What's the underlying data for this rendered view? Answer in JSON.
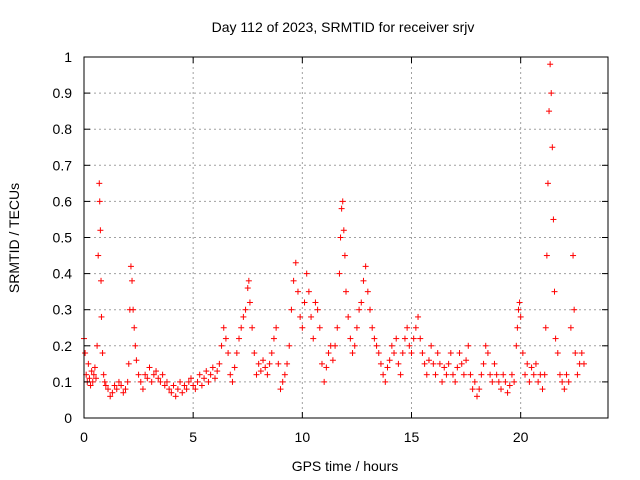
{
  "chart_data": {
    "type": "scatter",
    "title": "Day 112 of 2023, SRMTID for receiver srjv",
    "xlabel": "GPS time / hours",
    "ylabel": "SRMTID / TECUs",
    "xlim": [
      0,
      24
    ],
    "ylim": [
      0,
      1
    ],
    "xticks": [
      0,
      5,
      10,
      15,
      20
    ],
    "xtick_labels": [
      "0",
      "5",
      "10",
      "15",
      "20"
    ],
    "yticks": [
      0,
      0.1,
      0.2,
      0.3,
      0.4,
      0.5,
      0.6,
      0.7,
      0.8,
      0.9,
      1
    ],
    "ytick_labels": [
      "0",
      "0.1",
      "0.2",
      "0.3",
      "0.4",
      "0.5",
      "0.6",
      "0.7",
      "0.8",
      "0.9",
      "1"
    ],
    "grid": true,
    "marker": "+",
    "color": "#ff0000",
    "series": [
      {
        "name": "srjv",
        "points": [
          [
            0.0,
            0.22
          ],
          [
            0.05,
            0.18
          ],
          [
            0.1,
            0.12
          ],
          [
            0.15,
            0.1
          ],
          [
            0.2,
            0.15
          ],
          [
            0.25,
            0.11
          ],
          [
            0.3,
            0.09
          ],
          [
            0.35,
            0.13
          ],
          [
            0.4,
            0.1
          ],
          [
            0.45,
            0.12
          ],
          [
            0.5,
            0.14
          ],
          [
            0.55,
            0.11
          ],
          [
            0.6,
            0.2
          ],
          [
            0.65,
            0.45
          ],
          [
            0.7,
            0.65
          ],
          [
            0.72,
            0.6
          ],
          [
            0.75,
            0.52
          ],
          [
            0.78,
            0.38
          ],
          [
            0.8,
            0.28
          ],
          [
            0.85,
            0.18
          ],
          [
            0.9,
            0.12
          ],
          [
            0.95,
            0.1
          ],
          [
            1.0,
            0.09
          ],
          [
            1.1,
            0.08
          ],
          [
            1.2,
            0.06
          ],
          [
            1.3,
            0.07
          ],
          [
            1.4,
            0.09
          ],
          [
            1.5,
            0.08
          ],
          [
            1.6,
            0.1
          ],
          [
            1.7,
            0.09
          ],
          [
            1.8,
            0.07
          ],
          [
            1.9,
            0.08
          ],
          [
            2.0,
            0.1
          ],
          [
            2.05,
            0.15
          ],
          [
            2.1,
            0.3
          ],
          [
            2.15,
            0.42
          ],
          [
            2.2,
            0.38
          ],
          [
            2.25,
            0.3
          ],
          [
            2.3,
            0.25
          ],
          [
            2.35,
            0.2
          ],
          [
            2.4,
            0.16
          ],
          [
            2.5,
            0.12
          ],
          [
            2.6,
            0.1
          ],
          [
            2.7,
            0.08
          ],
          [
            2.8,
            0.12
          ],
          [
            2.9,
            0.11
          ],
          [
            3.0,
            0.14
          ],
          [
            3.1,
            0.1
          ],
          [
            3.2,
            0.12
          ],
          [
            3.3,
            0.13
          ],
          [
            3.4,
            0.11
          ],
          [
            3.5,
            0.1
          ],
          [
            3.6,
            0.12
          ],
          [
            3.7,
            0.09
          ],
          [
            3.8,
            0.1
          ],
          [
            3.9,
            0.08
          ],
          [
            4.0,
            0.07
          ],
          [
            4.1,
            0.09
          ],
          [
            4.2,
            0.06
          ],
          [
            4.3,
            0.08
          ],
          [
            4.4,
            0.1
          ],
          [
            4.5,
            0.07
          ],
          [
            4.6,
            0.09
          ],
          [
            4.7,
            0.08
          ],
          [
            4.8,
            0.1
          ],
          [
            4.9,
            0.11
          ],
          [
            5.0,
            0.09
          ],
          [
            5.1,
            0.08
          ],
          [
            5.2,
            0.1
          ],
          [
            5.3,
            0.12
          ],
          [
            5.4,
            0.09
          ],
          [
            5.5,
            0.11
          ],
          [
            5.6,
            0.13
          ],
          [
            5.7,
            0.1
          ],
          [
            5.8,
            0.12
          ],
          [
            5.9,
            0.14
          ],
          [
            6.0,
            0.11
          ],
          [
            6.1,
            0.13
          ],
          [
            6.2,
            0.15
          ],
          [
            6.3,
            0.2
          ],
          [
            6.4,
            0.25
          ],
          [
            6.5,
            0.22
          ],
          [
            6.6,
            0.18
          ],
          [
            6.7,
            0.12
          ],
          [
            6.8,
            0.1
          ],
          [
            6.9,
            0.14
          ],
          [
            7.0,
            0.18
          ],
          [
            7.1,
            0.22
          ],
          [
            7.2,
            0.25
          ],
          [
            7.3,
            0.28
          ],
          [
            7.4,
            0.3
          ],
          [
            7.5,
            0.36
          ],
          [
            7.55,
            0.38
          ],
          [
            7.6,
            0.32
          ],
          [
            7.7,
            0.25
          ],
          [
            7.8,
            0.18
          ],
          [
            7.9,
            0.12
          ],
          [
            8.0,
            0.15
          ],
          [
            8.1,
            0.13
          ],
          [
            8.2,
            0.16
          ],
          [
            8.3,
            0.14
          ],
          [
            8.4,
            0.12
          ],
          [
            8.5,
            0.15
          ],
          [
            8.6,
            0.18
          ],
          [
            8.7,
            0.22
          ],
          [
            8.8,
            0.25
          ],
          [
            8.9,
            0.15
          ],
          [
            9.0,
            0.08
          ],
          [
            9.1,
            0.1
          ],
          [
            9.2,
            0.12
          ],
          [
            9.3,
            0.15
          ],
          [
            9.4,
            0.2
          ],
          [
            9.5,
            0.3
          ],
          [
            9.6,
            0.38
          ],
          [
            9.7,
            0.43
          ],
          [
            9.8,
            0.35
          ],
          [
            9.9,
            0.28
          ],
          [
            10.0,
            0.25
          ],
          [
            10.1,
            0.32
          ],
          [
            10.2,
            0.4
          ],
          [
            10.3,
            0.35
          ],
          [
            10.4,
            0.28
          ],
          [
            10.5,
            0.22
          ],
          [
            10.6,
            0.32
          ],
          [
            10.7,
            0.3
          ],
          [
            10.8,
            0.25
          ],
          [
            10.9,
            0.15
          ],
          [
            11.0,
            0.1
          ],
          [
            11.1,
            0.14
          ],
          [
            11.2,
            0.18
          ],
          [
            11.3,
            0.2
          ],
          [
            11.4,
            0.16
          ],
          [
            11.5,
            0.2
          ],
          [
            11.6,
            0.25
          ],
          [
            11.7,
            0.4
          ],
          [
            11.75,
            0.5
          ],
          [
            11.8,
            0.58
          ],
          [
            11.85,
            0.6
          ],
          [
            11.9,
            0.52
          ],
          [
            11.95,
            0.45
          ],
          [
            12.0,
            0.35
          ],
          [
            12.1,
            0.28
          ],
          [
            12.2,
            0.22
          ],
          [
            12.3,
            0.18
          ],
          [
            12.4,
            0.2
          ],
          [
            12.5,
            0.25
          ],
          [
            12.6,
            0.3
          ],
          [
            12.7,
            0.32
          ],
          [
            12.8,
            0.38
          ],
          [
            12.9,
            0.42
          ],
          [
            13.0,
            0.35
          ],
          [
            13.1,
            0.3
          ],
          [
            13.2,
            0.25
          ],
          [
            13.3,
            0.22
          ],
          [
            13.4,
            0.2
          ],
          [
            13.5,
            0.18
          ],
          [
            13.6,
            0.15
          ],
          [
            13.7,
            0.12
          ],
          [
            13.8,
            0.1
          ],
          [
            13.9,
            0.14
          ],
          [
            14.0,
            0.16
          ],
          [
            14.1,
            0.2
          ],
          [
            14.2,
            0.18
          ],
          [
            14.3,
            0.22
          ],
          [
            14.4,
            0.15
          ],
          [
            14.5,
            0.12
          ],
          [
            14.6,
            0.18
          ],
          [
            14.7,
            0.22
          ],
          [
            14.8,
            0.25
          ],
          [
            14.9,
            0.2
          ],
          [
            15.0,
            0.18
          ],
          [
            15.1,
            0.22
          ],
          [
            15.2,
            0.25
          ],
          [
            15.3,
            0.28
          ],
          [
            15.4,
            0.22
          ],
          [
            15.5,
            0.18
          ],
          [
            15.6,
            0.15
          ],
          [
            15.7,
            0.12
          ],
          [
            15.8,
            0.16
          ],
          [
            15.9,
            0.2
          ],
          [
            16.0,
            0.15
          ],
          [
            16.1,
            0.12
          ],
          [
            16.2,
            0.18
          ],
          [
            16.3,
            0.15
          ],
          [
            16.4,
            0.1
          ],
          [
            16.5,
            0.14
          ],
          [
            16.6,
            0.12
          ],
          [
            16.7,
            0.15
          ],
          [
            16.8,
            0.18
          ],
          [
            16.9,
            0.12
          ],
          [
            17.0,
            0.1
          ],
          [
            17.1,
            0.14
          ],
          [
            17.2,
            0.18
          ],
          [
            17.3,
            0.15
          ],
          [
            17.4,
            0.12
          ],
          [
            17.5,
            0.16
          ],
          [
            17.6,
            0.2
          ],
          [
            17.7,
            0.12
          ],
          [
            17.8,
            0.08
          ],
          [
            17.9,
            0.1
          ],
          [
            18.0,
            0.06
          ],
          [
            18.1,
            0.08
          ],
          [
            18.2,
            0.12
          ],
          [
            18.3,
            0.15
          ],
          [
            18.4,
            0.2
          ],
          [
            18.5,
            0.18
          ],
          [
            18.6,
            0.12
          ],
          [
            18.7,
            0.1
          ],
          [
            18.8,
            0.15
          ],
          [
            18.9,
            0.12
          ],
          [
            19.0,
            0.1
          ],
          [
            19.1,
            0.08
          ],
          [
            19.2,
            0.12
          ],
          [
            19.3,
            0.1
          ],
          [
            19.4,
            0.07
          ],
          [
            19.5,
            0.09
          ],
          [
            19.6,
            0.12
          ],
          [
            19.7,
            0.1
          ],
          [
            19.8,
            0.2
          ],
          [
            19.85,
            0.25
          ],
          [
            19.9,
            0.3
          ],
          [
            19.95,
            0.32
          ],
          [
            20.0,
            0.28
          ],
          [
            20.1,
            0.18
          ],
          [
            20.2,
            0.12
          ],
          [
            20.3,
            0.15
          ],
          [
            20.4,
            0.1
          ],
          [
            20.5,
            0.14
          ],
          [
            20.6,
            0.12
          ],
          [
            20.7,
            0.15
          ],
          [
            20.8,
            0.1
          ],
          [
            20.9,
            0.12
          ],
          [
            21.0,
            0.08
          ],
          [
            21.1,
            0.12
          ],
          [
            21.15,
            0.25
          ],
          [
            21.2,
            0.45
          ],
          [
            21.25,
            0.65
          ],
          [
            21.3,
            0.85
          ],
          [
            21.35,
            0.98
          ],
          [
            21.4,
            0.9
          ],
          [
            21.45,
            0.75
          ],
          [
            21.5,
            0.55
          ],
          [
            21.55,
            0.35
          ],
          [
            21.6,
            0.22
          ],
          [
            21.7,
            0.18
          ],
          [
            21.8,
            0.12
          ],
          [
            21.9,
            0.1
          ],
          [
            22.0,
            0.08
          ],
          [
            22.1,
            0.12
          ],
          [
            22.2,
            0.1
          ],
          [
            22.3,
            0.25
          ],
          [
            22.4,
            0.45
          ],
          [
            22.45,
            0.3
          ],
          [
            22.5,
            0.18
          ],
          [
            22.6,
            0.12
          ],
          [
            22.7,
            0.15
          ],
          [
            22.8,
            0.18
          ],
          [
            22.9,
            0.15
          ]
        ]
      }
    ]
  }
}
